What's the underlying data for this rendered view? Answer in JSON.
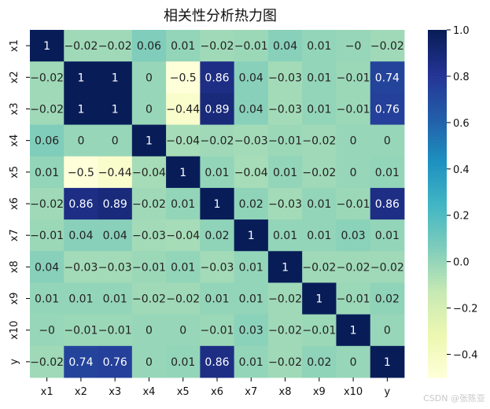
{
  "chart_data": {
    "type": "heatmap",
    "title": "相关性分析热力图",
    "x_labels": [
      "x1",
      "x2",
      "x3",
      "x4",
      "x5",
      "x6",
      "x7",
      "x8",
      "x9",
      "x10",
      "y"
    ],
    "y_labels": [
      "x1",
      "x2",
      "x3",
      "x4",
      "x5",
      "x6",
      "x7",
      "x8",
      "x9",
      "x10",
      "y"
    ],
    "values": [
      [
        1,
        -0.02,
        -0.02,
        0.06,
        0.01,
        -0.02,
        -0.01,
        0.04,
        0.01,
        0,
        -0.02
      ],
      [
        -0.02,
        1,
        1,
        0,
        -0.5,
        0.86,
        0.04,
        -0.03,
        0.01,
        -0.01,
        0.74
      ],
      [
        -0.02,
        1,
        1,
        0,
        -0.44,
        0.89,
        0.04,
        -0.03,
        0.01,
        -0.01,
        0.76
      ],
      [
        0.06,
        0,
        0,
        1,
        -0.04,
        -0.02,
        -0.03,
        -0.01,
        -0.02,
        0,
        0
      ],
      [
        0.01,
        -0.5,
        -0.44,
        -0.04,
        1,
        0.01,
        -0.04,
        0.01,
        -0.02,
        0,
        0.01
      ],
      [
        -0.02,
        0.86,
        0.89,
        -0.02,
        0.01,
        1,
        0.02,
        -0.03,
        0.01,
        -0.01,
        0.86
      ],
      [
        -0.01,
        0.04,
        0.04,
        -0.03,
        -0.04,
        0.02,
        1,
        0.01,
        0.01,
        0.03,
        0.01
      ],
      [
        0.04,
        -0.03,
        -0.03,
        -0.01,
        0.01,
        -0.03,
        0.01,
        1,
        -0.02,
        -0.02,
        -0.02
      ],
      [
        0.01,
        0.01,
        0.01,
        -0.02,
        -0.02,
        0.01,
        0.01,
        -0.02,
        1,
        -0.01,
        0.02
      ],
      [
        0,
        -0.01,
        -0.01,
        0,
        0,
        -0.01,
        0.03,
        -0.02,
        -0.01,
        1,
        0
      ],
      [
        -0.02,
        0.74,
        0.76,
        0,
        0.01,
        0.86,
        0.01,
        -0.02,
        0.02,
        0,
        1
      ]
    ],
    "colormap": "YlGnBu",
    "vmin": -0.5,
    "vmax": 1.0,
    "colorbar_ticks": [
      1.0,
      0.8,
      0.6,
      0.4,
      0.2,
      0.0,
      -0.2,
      -0.4
    ],
    "colorbar_tick_labels": [
      "1.0",
      "0.8",
      "0.6",
      "0.4",
      "0.2",
      "0.0",
      "−0.2",
      "−0.4"
    ],
    "annotations": true
  },
  "watermark": "CSDN @张陈亚"
}
